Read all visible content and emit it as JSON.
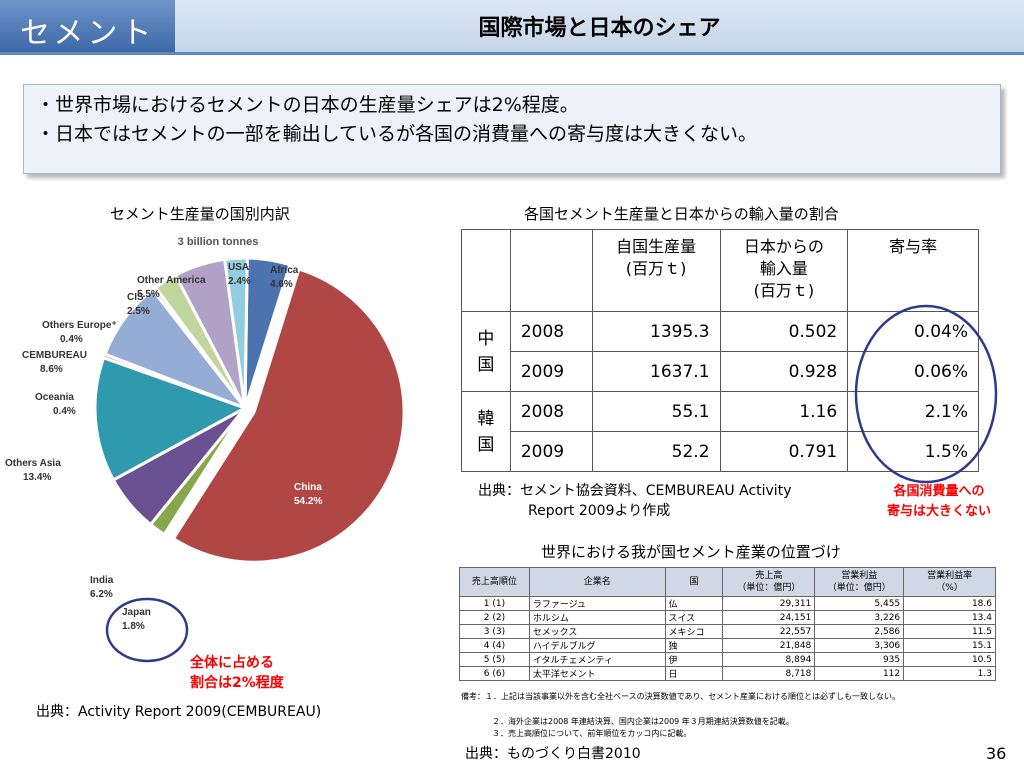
{
  "header": {
    "section": "セメント",
    "title": "国際市場と日本のシェア"
  },
  "bullets": [
    "・世界市場におけるセメントの日本の生産量シェアは2%程度。",
    "・日本ではセメントの一部を輸出しているが各国の消費量への寄与度は大きくない。"
  ],
  "pie": {
    "caption": "セメント生産量の国別内訳",
    "source": "出典：Activity Report 2009(CEMBUREAU)",
    "callout_line1": "全体に占める",
    "callout_line2": "割合は2%程度"
  },
  "chart_data": {
    "type": "pie",
    "title": "3 billion tonnes",
    "slices": [
      {
        "name": "Africa",
        "value": 4.6,
        "label": "4.6%",
        "color": "#4a73b0"
      },
      {
        "name": "China",
        "value": 54.2,
        "label": "54.2%",
        "color": "#b04745"
      },
      {
        "name": "Japan",
        "value": 1.8,
        "label": "1.8%",
        "color": "#86a84a"
      },
      {
        "name": "India",
        "value": 6.2,
        "label": "6.2%",
        "color": "#6a5191"
      },
      {
        "name": "Others Asia",
        "value": 13.4,
        "label": "13.4%",
        "color": "#2f9aae"
      },
      {
        "name": "Oceania",
        "value": 0.4,
        "label": "0.4%",
        "color": "#e88b3d"
      },
      {
        "name": "CEMBUREAU",
        "value": 8.6,
        "label": "8.6%",
        "color": "#95add5"
      },
      {
        "name": "Others Europe⁺",
        "value": 0.4,
        "label": "0.4%",
        "color": "#d99795"
      },
      {
        "name": "CIS",
        "value": 2.5,
        "label": "2.5%",
        "color": "#c1d69c"
      },
      {
        "name": "Other America",
        "value": 5.5,
        "label": "5.5%",
        "color": "#b2a2c8"
      },
      {
        "name": "USA",
        "value": 2.4,
        "label": "2.4%",
        "color": "#92cddd"
      }
    ]
  },
  "import_table": {
    "caption": "各国セメント生産量と日本からの輸入量の割合",
    "headers": [
      "自国生産量\n(百万ｔ)",
      "日本からの\n輸入量\n(百万ｔ)",
      "寄与率"
    ],
    "groups": [
      {
        "country": "中\n国",
        "rows": [
          {
            "year": "2008",
            "production": "1395.3",
            "imports": "0.502",
            "ratio": "0.04%"
          },
          {
            "year": "2009",
            "production": "1637.1",
            "imports": "0.928",
            "ratio": "0.06%"
          }
        ]
      },
      {
        "country": "韓\n国",
        "rows": [
          {
            "year": "2008",
            "production": "55.1",
            "imports": "1.16",
            "ratio": "2.1%"
          },
          {
            "year": "2009",
            "production": "52.2",
            "imports": "0.791",
            "ratio": "1.5%"
          }
        ]
      }
    ],
    "source_line1": "出典：セメント協会資料、CEMBUREAU Activity",
    "source_line2": "Report 2009より作成",
    "callout_line1": "各国消費量への",
    "callout_line2": "寄与は大きくない"
  },
  "ranking_table": {
    "caption": "世界における我が国セメント産業の位置づけ",
    "headers": [
      "売上高順位",
      "企業名",
      "国",
      "売上高\n（単位：億円）",
      "営業利益\n（単位：億円）",
      "営業利益率\n（%）"
    ],
    "rows": [
      [
        "1 (1)",
        "ラファージュ",
        "仏",
        "29,311",
        "5,455",
        "18.6"
      ],
      [
        "2 (2)",
        "ホルシム",
        "スイス",
        "24,151",
        "3,226",
        "13.4"
      ],
      [
        "3 (3)",
        "セメックス",
        "メキシコ",
        "22,557",
        "2,586",
        "11.5"
      ],
      [
        "4 (4)",
        "ハイデルブルグ",
        "独",
        "21,848",
        "3,306",
        "15.1"
      ],
      [
        "5 (5)",
        "イタルチェメンティ",
        "伊",
        "8,894",
        "935",
        "10.5"
      ],
      [
        "6 (6)",
        "太平洋セメント",
        "日",
        "8,718",
        "112",
        "1.3"
      ]
    ],
    "notes": [
      "備考：１．上記は当該事業以外を含む全社ベースの決算数値であり、セメント産業における順位とは必ずしも一致しない。",
      "２．海外企業は2008 年連結決算、国内企業は2009 年３月期連結決算数値を記載。",
      "３．売上高順位について、前年順位をカッコ内に記載。"
    ],
    "source": "出典：ものづくり白書2010"
  },
  "page_number": "36"
}
